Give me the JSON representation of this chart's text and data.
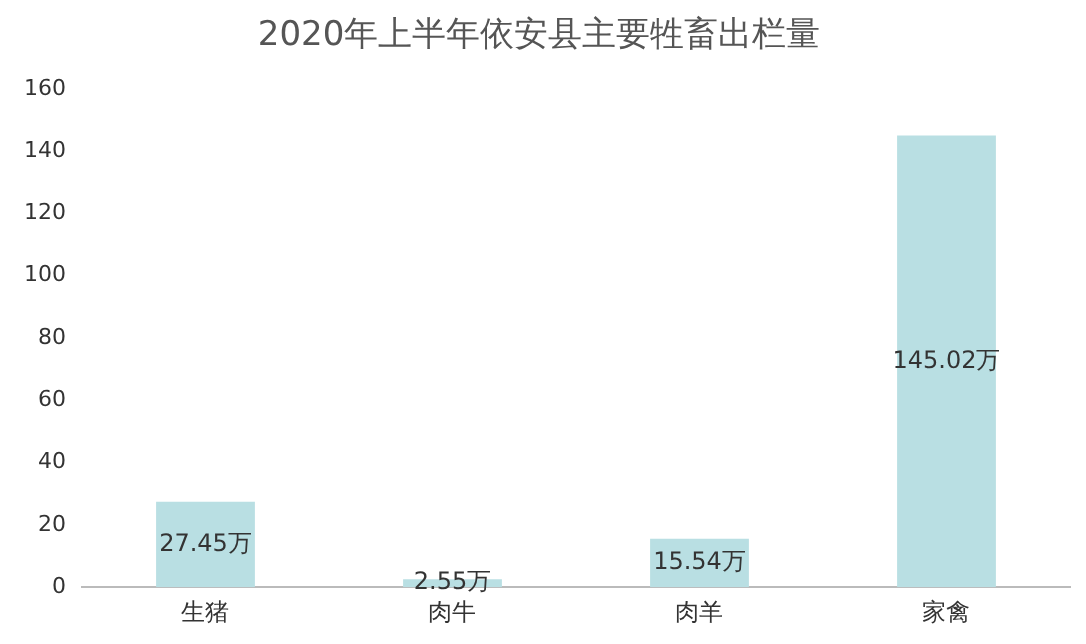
{
  "chart_data": {
    "type": "bar",
    "title": "2020年上半年依安县主要牲畜出栏量",
    "categories": [
      "生猪",
      "肉牛",
      "肉羊",
      "家禽"
    ],
    "values": [
      27.45,
      2.55,
      15.54,
      145.02
    ],
    "value_labels": [
      "27.45万",
      "2.55万",
      "15.54万",
      "145.02万"
    ],
    "color": "#b9dfe3",
    "ylim": [
      0,
      160
    ],
    "yticks": [
      0,
      20,
      40,
      60,
      80,
      100,
      120,
      140,
      160
    ],
    "grid": false
  }
}
